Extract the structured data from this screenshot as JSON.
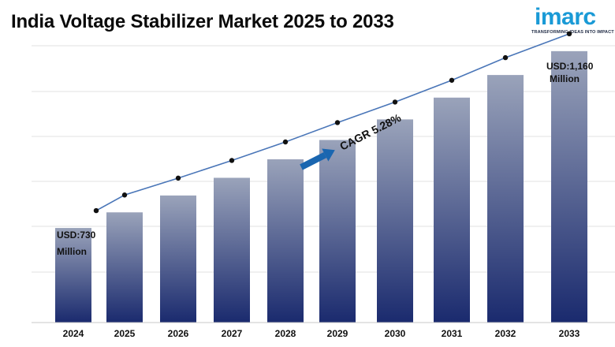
{
  "header": {
    "title": "India Voltage Stabilizer Market 2025 to 2033"
  },
  "logo": {
    "word": "imarc",
    "tagline": "TRANSFORMING IDEAS INTO IMPACT",
    "color": "#1a9ad6"
  },
  "chart_data": {
    "type": "bar",
    "categories": [
      "2024",
      "2025",
      "2026",
      "2027",
      "2028",
      "2029",
      "2030",
      "2031",
      "2032",
      "2033"
    ],
    "values": [
      730,
      768,
      809,
      852,
      897,
      944,
      994,
      1047,
      1102,
      1160
    ],
    "ylim": [
      500,
      1200
    ],
    "grid": true,
    "bar_gradient": [
      "#9aa3ba",
      "#1a2a6e"
    ],
    "line_color": "#4a76b8",
    "start_label": [
      "USD:730",
      "Million"
    ],
    "end_label": [
      "USD:1,160",
      "Million"
    ],
    "annotation": "CAGR 5.28%",
    "arrow_color": "#1a66b0"
  }
}
